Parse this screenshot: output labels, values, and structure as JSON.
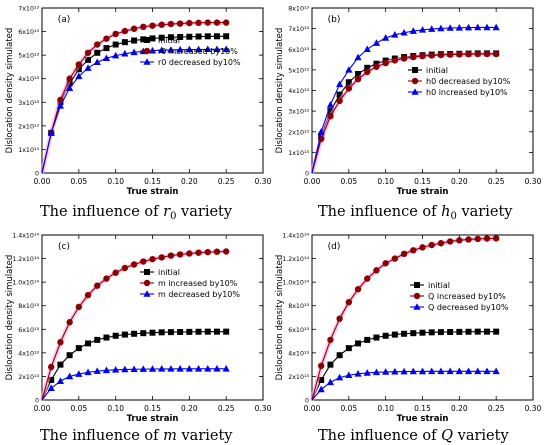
{
  "chart_data": [
    {
      "type": "line",
      "panel_label": "(a)",
      "caption": {
        "prefix": "The influence of ",
        "var": "r",
        "sub": "0",
        "suffix": " variety"
      },
      "xlabel": "True strain",
      "ylabel": "Dislocation density simulated",
      "xlim": [
        0.0,
        0.3
      ],
      "ylim": [
        0,
        70000000000000.0
      ],
      "xticks": [
        "0.00",
        "0.05",
        "0.10",
        "0.15",
        "0.20",
        "0.25",
        "0.30"
      ],
      "yticks": [
        "0",
        "1x10¹³",
        "2x10¹³",
        "3x10¹³",
        "4x10¹³",
        "5x10¹³",
        "6x10¹³",
        "7x10¹³"
      ],
      "legend_position": "center-right",
      "x": [
        0.0,
        0.0125,
        0.025,
        0.0375,
        0.05,
        0.0625,
        0.075,
        0.0875,
        0.1,
        0.1125,
        0.125,
        0.1375,
        0.15,
        0.1625,
        0.175,
        0.1875,
        0.2,
        0.2125,
        0.225,
        0.2375,
        0.25
      ],
      "series": [
        {
          "name": "initial",
          "color": "#000000",
          "marker": "square",
          "values": [
            0,
            17000000000000.0,
            30000000000000.0,
            38000000000000.0,
            44000000000000.0,
            48000000000000.0,
            51000000000000.0,
            53000000000000.0,
            54500000000000.0,
            55500000000000.0,
            56200000000000.0,
            56700000000000.0,
            57100000000000.0,
            57400000000000.0,
            57600000000000.0,
            57700000000000.0,
            57800000000000.0,
            57900000000000.0,
            58000000000000.0,
            58000000000000.0,
            58000000000000.0
          ]
        },
        {
          "name": "r0 increased by10%",
          "color": "#8b0000",
          "marker": "circle",
          "values": [
            0,
            17000000000000.0,
            31000000000000.0,
            40000000000000.0,
            46000000000000.0,
            51000000000000.0,
            54500000000000.0,
            57000000000000.0,
            59000000000000.0,
            60200000000000.0,
            61200000000000.0,
            62000000000000.0,
            62500000000000.0,
            62900000000000.0,
            63200000000000.0,
            63400000000000.0,
            63600000000000.0,
            63700000000000.0,
            63800000000000.0,
            63800000000000.0,
            63800000000000.0
          ]
        },
        {
          "name": "r0 decreased by10%",
          "color": "#0000ee",
          "marker": "triangle",
          "values": [
            0,
            17000000000000.0,
            28500000000000.0,
            36000000000000.0,
            41000000000000.0,
            44500000000000.0,
            47000000000000.0,
            48700000000000.0,
            49800000000000.0,
            50600000000000.0,
            51200000000000.0,
            51600000000000.0,
            51900000000000.0,
            52100000000000.0,
            52200000000000.0,
            52300000000000.0,
            52400000000000.0,
            52400000000000.0,
            52500000000000.0,
            52500000000000.0,
            52500000000000.0
          ]
        }
      ]
    },
    {
      "type": "line",
      "panel_label": "(b)",
      "caption": {
        "prefix": "The influence of ",
        "var": "h",
        "sub": "0",
        "suffix": " variety"
      },
      "xlabel": "True strain",
      "ylabel": "Dislocation density simulated",
      "xlim": [
        0.0,
        0.3
      ],
      "ylim": [
        0,
        80000000000000.0
      ],
      "xticks": [
        "0.00",
        "0.05",
        "0.10",
        "0.15",
        "0.20",
        "0.25",
        "0.30"
      ],
      "yticks": [
        "0",
        "1x10¹³",
        "2x10¹³",
        "3x10¹³",
        "4x10¹³",
        "5x10¹³",
        "6x10¹³",
        "7x10¹³",
        "8x10¹³"
      ],
      "legend_position": "center-right",
      "x": [
        0.0,
        0.0125,
        0.025,
        0.0375,
        0.05,
        0.0625,
        0.075,
        0.0875,
        0.1,
        0.1125,
        0.125,
        0.1375,
        0.15,
        0.1625,
        0.175,
        0.1875,
        0.2,
        0.2125,
        0.225,
        0.2375,
        0.25
      ],
      "series": [
        {
          "name": "initial",
          "color": "#000000",
          "marker": "square",
          "values": [
            0,
            18000000000000.0,
            30000000000000.0,
            38000000000000.0,
            44000000000000.0,
            48000000000000.0,
            51000000000000.0,
            53000000000000.0,
            54500000000000.0,
            55500000000000.0,
            56200000000000.0,
            56700000000000.0,
            57100000000000.0,
            57400000000000.0,
            57600000000000.0,
            57700000000000.0,
            57800000000000.0,
            57900000000000.0,
            58000000000000.0,
            58000000000000.0,
            58000000000000.0
          ]
        },
        {
          "name": "h0 decreased by10%",
          "color": "#8b0000",
          "marker": "circle",
          "values": [
            0,
            16500000000000.0,
            27500000000000.0,
            35000000000000.0,
            41000000000000.0,
            45500000000000.0,
            49000000000000.0,
            51500000000000.0,
            53300000000000.0,
            54600000000000.0,
            55500000000000.0,
            56200000000000.0,
            56700000000000.0,
            57000000000000.0,
            57200000000000.0,
            57400000000000.0,
            57500000000000.0,
            57600000000000.0,
            57700000000000.0,
            57700000000000.0,
            57700000000000.0
          ]
        },
        {
          "name": "h0 increased by10%",
          "color": "#0000ee",
          "marker": "triangle",
          "values": [
            0,
            20000000000000.0,
            33000000000000.0,
            43000000000000.0,
            50000000000000.0,
            56000000000000.0,
            60000000000000.0,
            63000000000000.0,
            65500000000000.0,
            67000000000000.0,
            68000000000000.0,
            68800000000000.0,
            69400000000000.0,
            69800000000000.0,
            70100000000000.0,
            70300000000000.0,
            70400000000000.0,
            70500000000000.0,
            70600000000000.0,
            70600000000000.0,
            70600000000000.0
          ]
        }
      ]
    },
    {
      "type": "line",
      "panel_label": "(c)",
      "caption": {
        "prefix": "The influence of ",
        "var": "m",
        "sub": "",
        "suffix": " variety"
      },
      "xlabel": "True strain",
      "ylabel": "Dislocation density simulated",
      "xlim": [
        0.0,
        0.3
      ],
      "ylim": [
        0,
        140000000000000.0
      ],
      "xticks": [
        "0.00",
        "0.05",
        "0.10",
        "0.15",
        "0.20",
        "0.25",
        "0.30"
      ],
      "yticks": [
        "0",
        "2x10¹³",
        "4x10¹³",
        "6x10¹³",
        "8x10¹³",
        "1.0x10¹⁴",
        "1.2x10¹⁴",
        "1.4x10¹⁴"
      ],
      "legend_position": "center-right",
      "x": [
        0.0,
        0.0125,
        0.025,
        0.0375,
        0.05,
        0.0625,
        0.075,
        0.0875,
        0.1,
        0.1125,
        0.125,
        0.1375,
        0.15,
        0.1625,
        0.175,
        0.1875,
        0.2,
        0.2125,
        0.225,
        0.2375,
        0.25
      ],
      "series": [
        {
          "name": "initial",
          "color": "#000000",
          "marker": "square",
          "values": [
            0,
            17000000000000.0,
            30000000000000.0,
            38000000000000.0,
            44000000000000.0,
            48000000000000.0,
            51000000000000.0,
            53000000000000.0,
            54500000000000.0,
            55500000000000.0,
            56200000000000.0,
            56700000000000.0,
            57100000000000.0,
            57400000000000.0,
            57600000000000.0,
            57700000000000.0,
            57800000000000.0,
            57900000000000.0,
            58000000000000.0,
            58000000000000.0,
            58000000000000.0
          ]
        },
        {
          "name": "m increased by10%",
          "color": "#8b0000",
          "marker": "circle",
          "values": [
            0,
            28000000000000.0,
            49000000000000.0,
            66000000000000.0,
            79000000000000.0,
            89000000000000.0,
            97000000000000.0,
            103000000000000.0,
            108000000000000.0,
            112000000000000.0,
            115000000000000.0,
            117500000000000.0,
            119500000000000.0,
            121000000000000.0,
            122500000000000.0,
            123500000000000.0,
            124300000000000.0,
            125000000000000.0,
            125500000000000.0,
            125800000000000.0,
            126000000000000.0
          ]
        },
        {
          "name": "m decreased by10%",
          "color": "#0000ee",
          "marker": "triangle",
          "values": [
            0,
            10000000000000.0,
            16000000000000.0,
            20000000000000.0,
            22000000000000.0,
            23500000000000.0,
            24500000000000.0,
            25200000000000.0,
            25600000000000.0,
            25900000000000.0,
            26100000000000.0,
            26200000000000.0,
            26300000000000.0,
            26400000000000.0,
            26400000000000.0,
            26500000000000.0,
            26500000000000.0,
            26500000000000.0,
            26500000000000.0,
            26500000000000.0,
            26500000000000.0
          ]
        }
      ]
    },
    {
      "type": "line",
      "panel_label": "(d)",
      "caption": {
        "prefix": "The influence of ",
        "var": "Q",
        "sub": "",
        "suffix": " variety"
      },
      "xlabel": "True strain",
      "ylabel": "Dislocation density simulated",
      "xlim": [
        0.0,
        0.3
      ],
      "ylim": [
        0,
        140000000000000.0
      ],
      "xticks": [
        "0.00",
        "0.05",
        "0.10",
        "0.15",
        "0.20",
        "0.25",
        "0.30"
      ],
      "yticks": [
        "0",
        "2x10¹³",
        "4x10¹³",
        "6x10¹³",
        "8x10¹³",
        "1.0x10¹⁴",
        "1.2x10¹⁴",
        "1.4x10¹⁴"
      ],
      "legend_position": "center-right",
      "x": [
        0.0,
        0.0125,
        0.025,
        0.0375,
        0.05,
        0.0625,
        0.075,
        0.0875,
        0.1,
        0.1125,
        0.125,
        0.1375,
        0.15,
        0.1625,
        0.175,
        0.1875,
        0.2,
        0.2125,
        0.225,
        0.2375,
        0.25
      ],
      "series": [
        {
          "name": "initial",
          "color": "#000000",
          "marker": "square",
          "values": [
            0,
            17000000000000.0,
            30000000000000.0,
            38000000000000.0,
            44000000000000.0,
            48000000000000.0,
            51000000000000.0,
            53000000000000.0,
            54500000000000.0,
            55500000000000.0,
            56200000000000.0,
            56700000000000.0,
            57100000000000.0,
            57400000000000.0,
            57600000000000.0,
            57700000000000.0,
            57800000000000.0,
            57900000000000.0,
            58000000000000.0,
            58000000000000.0,
            58000000000000.0
          ]
        },
        {
          "name": "Q increased by10%",
          "color": "#8b0000",
          "marker": "circle",
          "values": [
            0,
            29000000000000.0,
            51000000000000.0,
            69000000000000.0,
            83000000000000.0,
            94000000000000.0,
            103000000000000.0,
            110000000000000.0,
            116000000000000.0,
            120000000000000.0,
            124000000000000.0,
            127000000000000.0,
            129500000000000.0,
            131500000000000.0,
            133000000000000.0,
            134500000000000.0,
            135500000000000.0,
            136200000000000.0,
            136700000000000.0,
            137000000000000.0,
            137200000000000.0
          ]
        },
        {
          "name": "Q decreased by10%",
          "color": "#0000ee",
          "marker": "triangle",
          "values": [
            0,
            9000000000000.0,
            15000000000000.0,
            19000000000000.0,
            21000000000000.0,
            22200000000000.0,
            23000000000000.0,
            23500000000000.0,
            23800000000000.0,
            24000000000000.0,
            24100000000000.0,
            24200000000000.0,
            24200000000000.0,
            24300000000000.0,
            24300000000000.0,
            24300000000000.0,
            24300000000000.0,
            24300000000000.0,
            24300000000000.0,
            24300000000000.0,
            24300000000000.0
          ]
        }
      ]
    }
  ]
}
